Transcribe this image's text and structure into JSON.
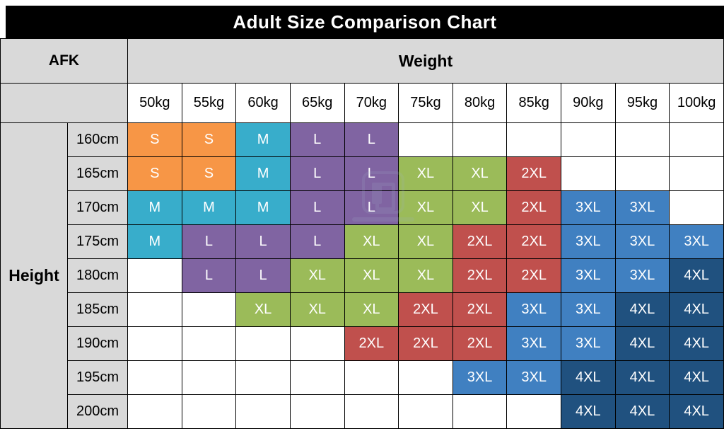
{
  "chart_data": {
    "type": "table",
    "title": "Adult Size Comparison Chart",
    "corner_label": "AFK",
    "x_axis_label": "Weight",
    "y_axis_label": "Height",
    "x_categories": [
      "50kg",
      "55kg",
      "60kg",
      "65kg",
      "70kg",
      "75kg",
      "80kg",
      "85kg",
      "90kg",
      "95kg",
      "100kg"
    ],
    "y_categories": [
      "160cm",
      "165cm",
      "170cm",
      "175cm",
      "180cm",
      "185cm",
      "190cm",
      "195cm",
      "200cm"
    ],
    "sizes_legend": [
      "S",
      "M",
      "L",
      "XL",
      "2XL",
      "3XL",
      "4XL"
    ],
    "size_colors": {
      "S": "#F79646",
      "M": "#38ADCB",
      "L": "#8064A2",
      "XL": "#9BBB59",
      "2XL": "#C0504D",
      "3XL": "#4080C1",
      "4XL": "#20517F"
    },
    "cells": [
      [
        "S",
        "S",
        "M",
        "L",
        "L",
        "",
        "",
        "",
        "",
        "",
        ""
      ],
      [
        "S",
        "S",
        "M",
        "L",
        "L",
        "XL",
        "XL",
        "2XL",
        "",
        "",
        ""
      ],
      [
        "M",
        "M",
        "M",
        "L",
        "L",
        "XL",
        "XL",
        "2XL",
        "3XL",
        "3XL",
        ""
      ],
      [
        "M",
        "L",
        "L",
        "L",
        "XL",
        "XL",
        "2XL",
        "2XL",
        "3XL",
        "3XL",
        "3XL"
      ],
      [
        "",
        "L",
        "L",
        "XL",
        "XL",
        "XL",
        "2XL",
        "2XL",
        "3XL",
        "3XL",
        "4XL"
      ],
      [
        "",
        "",
        "XL",
        "XL",
        "XL",
        "2XL",
        "2XL",
        "3XL",
        "3XL",
        "4XL",
        "4XL"
      ],
      [
        "",
        "",
        "",
        "",
        "2XL",
        "2XL",
        "2XL",
        "3XL",
        "3XL",
        "4XL",
        "4XL"
      ],
      [
        "",
        "",
        "",
        "",
        "",
        "",
        "3XL",
        "3XL",
        "4XL",
        "4XL",
        "4XL"
      ],
      [
        "",
        "",
        "",
        "",
        "",
        "",
        "",
        "",
        "4XL",
        "4XL",
        "4XL"
      ]
    ]
  }
}
